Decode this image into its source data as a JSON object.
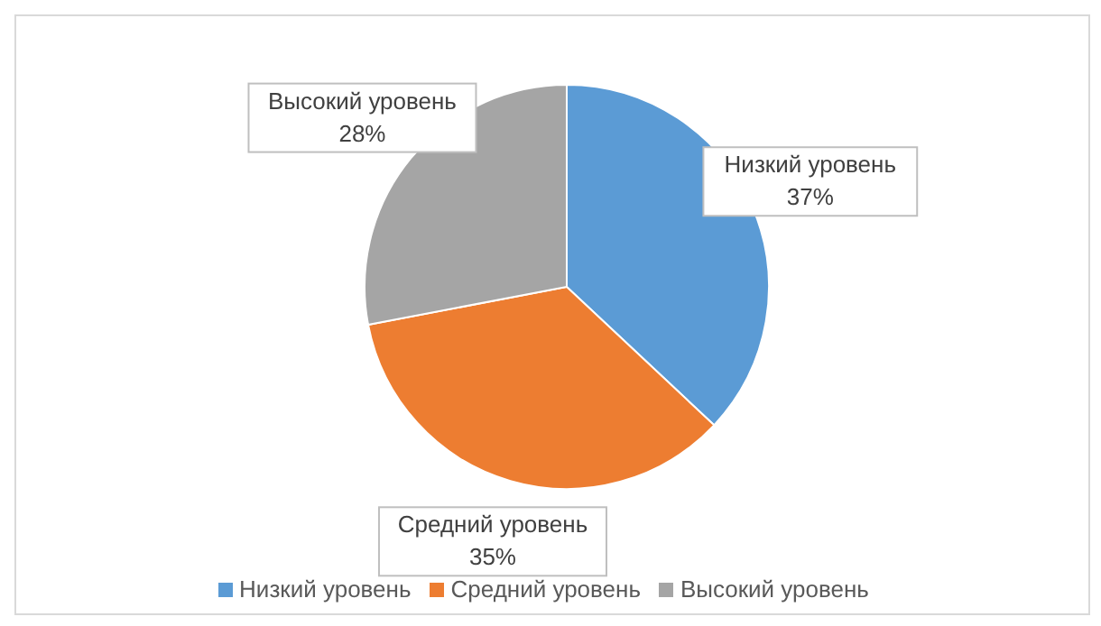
{
  "chart_data": {
    "type": "pie",
    "categories": [
      "Низкий уровень",
      "Средний уровень",
      "Высокий уровень"
    ],
    "values": [
      37,
      35,
      28
    ],
    "colors": [
      "#5b9bd5",
      "#ed7d31",
      "#a5a5a5"
    ],
    "value_labels": [
      "37%",
      "35%",
      "28%"
    ],
    "legend": "bottom"
  }
}
